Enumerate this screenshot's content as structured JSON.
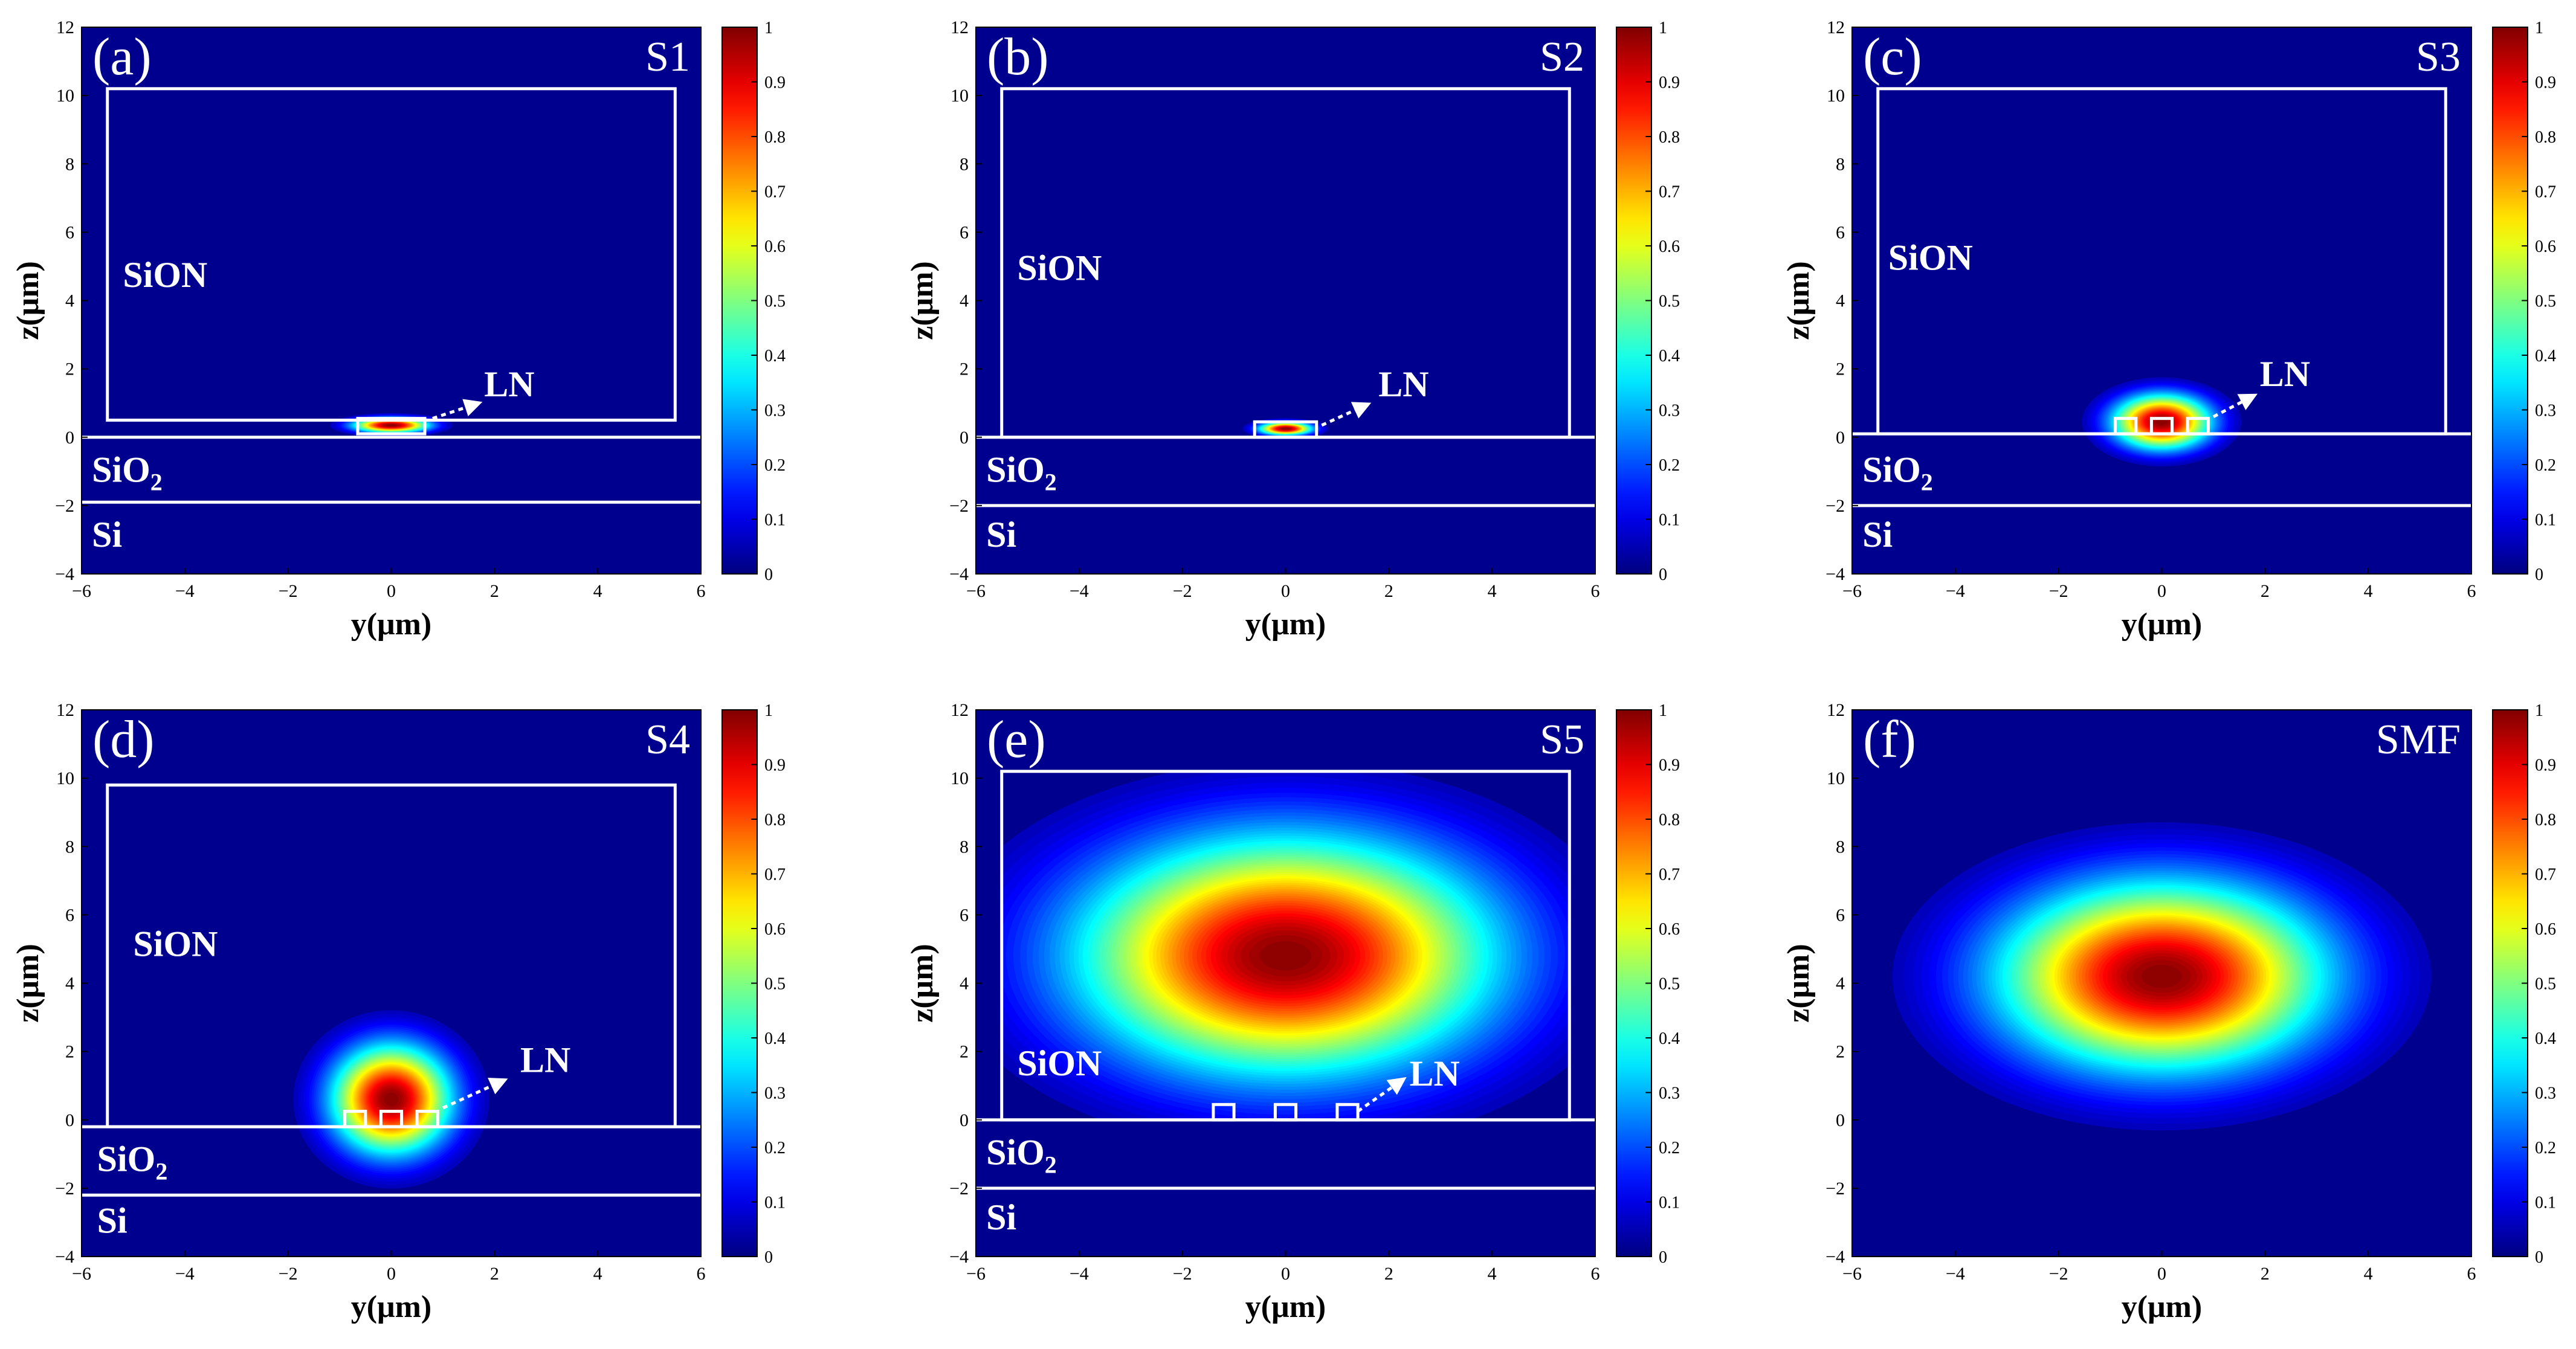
{
  "figure": {
    "colormap": "jet",
    "background_color": "#00008f",
    "structure_color": "#ffffff",
    "colorbar_ticks": [
      "0",
      "0.1",
      "0.2",
      "0.3",
      "0.4",
      "0.5",
      "0.6",
      "0.7",
      "0.8",
      "0.9",
      "1"
    ]
  },
  "chart_data": [
    {
      "type": "heatmap",
      "id": "a",
      "panel_label": "(a)",
      "title": "S1",
      "xlabel": "y(μm)",
      "ylabel": "z(μm)",
      "xlim": [
        -6,
        6
      ],
      "ylim": [
        -4,
        12
      ],
      "xticks": [
        "−6",
        "−4",
        "−2",
        "0",
        "2",
        "4",
        "6"
      ],
      "yticks": [
        "−4",
        "−2",
        "0",
        "2",
        "4",
        "6",
        "8",
        "10",
        "12"
      ],
      "colorbar_range": [
        0,
        1
      ],
      "mode": {
        "center_y": 0,
        "center_z": 0.35,
        "sigma_y": 0.5,
        "sigma_z": 0.15,
        "peak": 1
      },
      "cladding": {
        "y0": -5.5,
        "y1": 5.5,
        "z0": 0.5,
        "z1": 10.2
      },
      "sio2_top": -0.0,
      "si_top": -1.9,
      "waveguides": [
        {
          "y": 0,
          "w": 1.3,
          "z0": 0.1,
          "h": 0.45
        }
      ],
      "regions": [
        {
          "label": "SiON",
          "y": -5.2,
          "z": 4.4
        },
        {
          "label": "SiO",
          "sub": "2",
          "y": -5.8,
          "z": -1.3
        },
        {
          "label": "Si",
          "y": -5.8,
          "z": -3.2
        }
      ],
      "annotation": {
        "text": "LN",
        "arrow_from": [
          0.8,
          0.55
        ],
        "arrow_to": [
          1.6,
          0.95
        ],
        "text_y": 1.8,
        "text_z": 1.2
      }
    },
    {
      "type": "heatmap",
      "id": "b",
      "panel_label": "(b)",
      "title": "S2",
      "xlabel": "y(μm)",
      "ylabel": "z(μm)",
      "xlim": [
        -6,
        6
      ],
      "ylim": [
        -4,
        12
      ],
      "xticks": [
        "−6",
        "−4",
        "−2",
        "0",
        "2",
        "4",
        "6"
      ],
      "yticks": [
        "−4",
        "−2",
        "0",
        "2",
        "4",
        "6",
        "8",
        "10",
        "12"
      ],
      "colorbar_range": [
        0,
        1
      ],
      "mode": {
        "center_y": 0,
        "center_z": 0.25,
        "sigma_y": 0.35,
        "sigma_z": 0.13,
        "peak": 1
      },
      "cladding": {
        "y0": -5.5,
        "y1": 5.5,
        "z0": 0.0,
        "z1": 10.2
      },
      "sio2_top": 0.0,
      "si_top": -2.0,
      "waveguides": [
        {
          "y": 0,
          "w": 1.2,
          "z0": 0.0,
          "h": 0.45
        }
      ],
      "regions": [
        {
          "label": "SiON",
          "y": -5.2,
          "z": 4.6
        },
        {
          "label": "SiO",
          "sub": "2",
          "y": -5.8,
          "z": -1.3
        },
        {
          "label": "Si",
          "y": -5.8,
          "z": -3.2
        }
      ],
      "annotation": {
        "text": "LN",
        "arrow_from": [
          0.7,
          0.35
        ],
        "arrow_to": [
          1.5,
          0.9
        ],
        "text_y": 1.8,
        "text_z": 1.2
      }
    },
    {
      "type": "heatmap",
      "id": "c",
      "panel_label": "(c)",
      "title": "S3",
      "xlabel": "y(μm)",
      "ylabel": "z(μm)",
      "xlim": [
        -6,
        6
      ],
      "ylim": [
        -4,
        12
      ],
      "xticks": [
        "−6",
        "−4",
        "−2",
        "0",
        "2",
        "4",
        "6"
      ],
      "yticks": [
        "−4",
        "−2",
        "0",
        "2",
        "4",
        "6",
        "8",
        "10",
        "12"
      ],
      "colorbar_range": [
        0,
        1
      ],
      "mode": {
        "center_y": 0,
        "center_z": 0.45,
        "sigma_y": 0.65,
        "sigma_z": 0.55,
        "peak": 1
      },
      "cladding": {
        "y0": -5.5,
        "y1": 5.5,
        "z0": 0.1,
        "z1": 10.2
      },
      "sio2_top": 0.1,
      "si_top": -2.0,
      "waveguides": [
        {
          "y": -0.7,
          "w": 0.4,
          "z0": 0.1,
          "h": 0.45
        },
        {
          "y": 0,
          "w": 0.4,
          "z0": 0.1,
          "h": 0.45
        },
        {
          "y": 0.7,
          "w": 0.4,
          "z0": 0.1,
          "h": 0.45
        }
      ],
      "regions": [
        {
          "label": "SiON",
          "y": -5.3,
          "z": 4.9
        },
        {
          "label": "SiO",
          "sub": "2",
          "y": -5.8,
          "z": -1.3
        },
        {
          "label": "Si",
          "y": -5.8,
          "z": -3.2
        }
      ],
      "annotation": {
        "text": "LN",
        "arrow_from": [
          1.0,
          0.6
        ],
        "arrow_to": [
          1.7,
          1.15
        ],
        "text_y": 1.9,
        "text_z": 1.5
      }
    },
    {
      "type": "heatmap",
      "id": "d",
      "panel_label": "(d)",
      "title": "S4",
      "xlabel": "y(μm)",
      "ylabel": "z(μm)",
      "xlim": [
        -6,
        6
      ],
      "ylim": [
        -4,
        12
      ],
      "xticks": [
        "−6",
        "−4",
        "−2",
        "0",
        "2",
        "4",
        "6"
      ],
      "yticks": [
        "−4",
        "−2",
        "0",
        "2",
        "4",
        "6",
        "8",
        "10",
        "12"
      ],
      "colorbar_range": [
        0,
        1
      ],
      "mode": {
        "center_y": 0,
        "center_z": 0.6,
        "sigma_y": 0.8,
        "sigma_z": 1.1,
        "peak": 1
      },
      "cladding": {
        "y0": -5.5,
        "y1": 5.5,
        "z0": -0.2,
        "z1": 9.8
      },
      "sio2_top": -0.2,
      "si_top": -2.2,
      "waveguides": [
        {
          "y": -0.7,
          "w": 0.4,
          "z0": -0.2,
          "h": 0.45
        },
        {
          "y": 0,
          "w": 0.4,
          "z0": -0.2,
          "h": 0.45
        },
        {
          "y": 0.7,
          "w": 0.4,
          "z0": -0.2,
          "h": 0.45
        }
      ],
      "regions": [
        {
          "label": "SiON",
          "y": -5.0,
          "z": 4.8
        },
        {
          "label": "SiO",
          "sub": "2",
          "y": -5.7,
          "z": -1.5
        },
        {
          "label": "Si",
          "y": -5.7,
          "z": -3.3
        }
      ],
      "annotation": {
        "text": "LN",
        "arrow_from": [
          1.0,
          0.35
        ],
        "arrow_to": [
          2.1,
          1.1
        ],
        "text_y": 2.5,
        "text_z": 1.4
      }
    },
    {
      "type": "heatmap",
      "id": "e",
      "panel_label": "(e)",
      "title": "S5",
      "xlabel": "y(μm)",
      "ylabel": "z(μm)",
      "xlim": [
        -6,
        6
      ],
      "ylim": [
        -4,
        12
      ],
      "xticks": [
        "−6",
        "−4",
        "−2",
        "0",
        "2",
        "4",
        "6"
      ],
      "yticks": [
        "−4",
        "−2",
        "0",
        "2",
        "4",
        "6",
        "8",
        "10",
        "12"
      ],
      "colorbar_range": [
        0,
        1
      ],
      "mode": {
        "center_y": 0,
        "center_z": 4.8,
        "sigma_y": 2.8,
        "sigma_z": 2.4,
        "peak": 1,
        "clip": {
          "y0": -5.5,
          "y1": 5.5,
          "z0": 0.0,
          "z1": 10.2
        }
      },
      "cladding": {
        "y0": -5.5,
        "y1": 5.5,
        "z0": 0.0,
        "z1": 10.2
      },
      "sio2_top": 0.0,
      "si_top": -2.0,
      "waveguides": [
        {
          "y": -1.2,
          "w": 0.4,
          "z0": 0.0,
          "h": 0.45
        },
        {
          "y": 0,
          "w": 0.4,
          "z0": 0.0,
          "h": 0.45
        },
        {
          "y": 1.2,
          "w": 0.4,
          "z0": 0.0,
          "h": 0.45
        }
      ],
      "regions": [
        {
          "label": "SiON",
          "y": -5.2,
          "z": 1.3
        },
        {
          "label": "SiO",
          "sub": "2",
          "y": -5.8,
          "z": -1.3
        },
        {
          "label": "Si",
          "y": -5.8,
          "z": -3.2
        }
      ],
      "annotation": {
        "text": "LN",
        "arrow_from": [
          1.4,
          0.25
        ],
        "arrow_to": [
          2.2,
          1.1
        ],
        "text_y": 2.4,
        "text_z": 1.0
      }
    },
    {
      "type": "heatmap",
      "id": "f",
      "panel_label": "(f)",
      "title": "SMF",
      "xlabel": "y(μm)",
      "ylabel": "z(μm)",
      "xlim": [
        -6,
        6
      ],
      "ylim": [
        -4,
        12
      ],
      "xticks": [
        "−6",
        "−4",
        "−2",
        "0",
        "2",
        "4",
        "6"
      ],
      "yticks": [
        "−4",
        "−2",
        "0",
        "2",
        "4",
        "6",
        "8",
        "10",
        "12"
      ],
      "colorbar_range": [
        0,
        1
      ],
      "mode": {
        "center_y": 0,
        "center_z": 4.2,
        "sigma_y": 2.2,
        "sigma_z": 1.9,
        "peak": 1
      },
      "cladding": null,
      "sio2_top": null,
      "si_top": null,
      "waveguides": [],
      "regions": [],
      "annotation": null
    }
  ]
}
